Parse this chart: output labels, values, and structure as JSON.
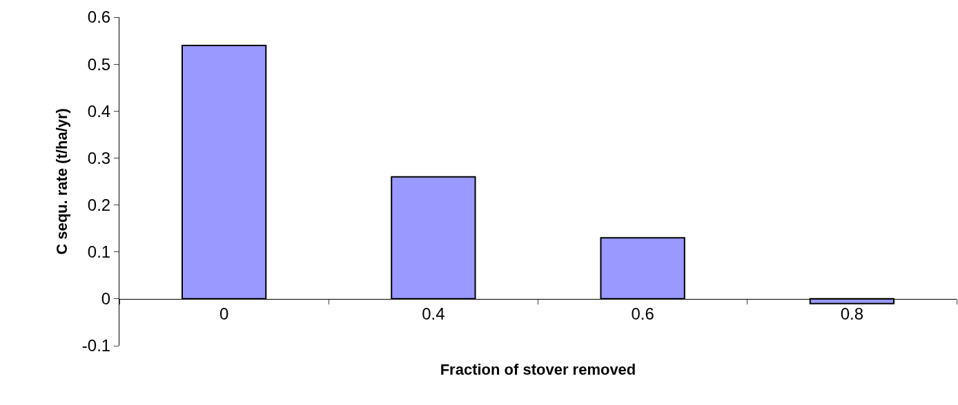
{
  "chart_data": {
    "type": "bar",
    "xlabel": "Fraction of stover removed",
    "ylabel": "C sequ. rate (t/ha/yr)",
    "categories": [
      "0",
      "0.4",
      "0.6",
      "0.8"
    ],
    "values": [
      0.54,
      0.26,
      0.13,
      -0.01
    ],
    "color": "#9999ff",
    "ylim": [
      -0.1,
      0.6
    ],
    "yticks": [
      -0.1,
      0,
      0.1,
      0.2,
      0.3,
      0.4,
      0.5,
      0.6
    ]
  }
}
